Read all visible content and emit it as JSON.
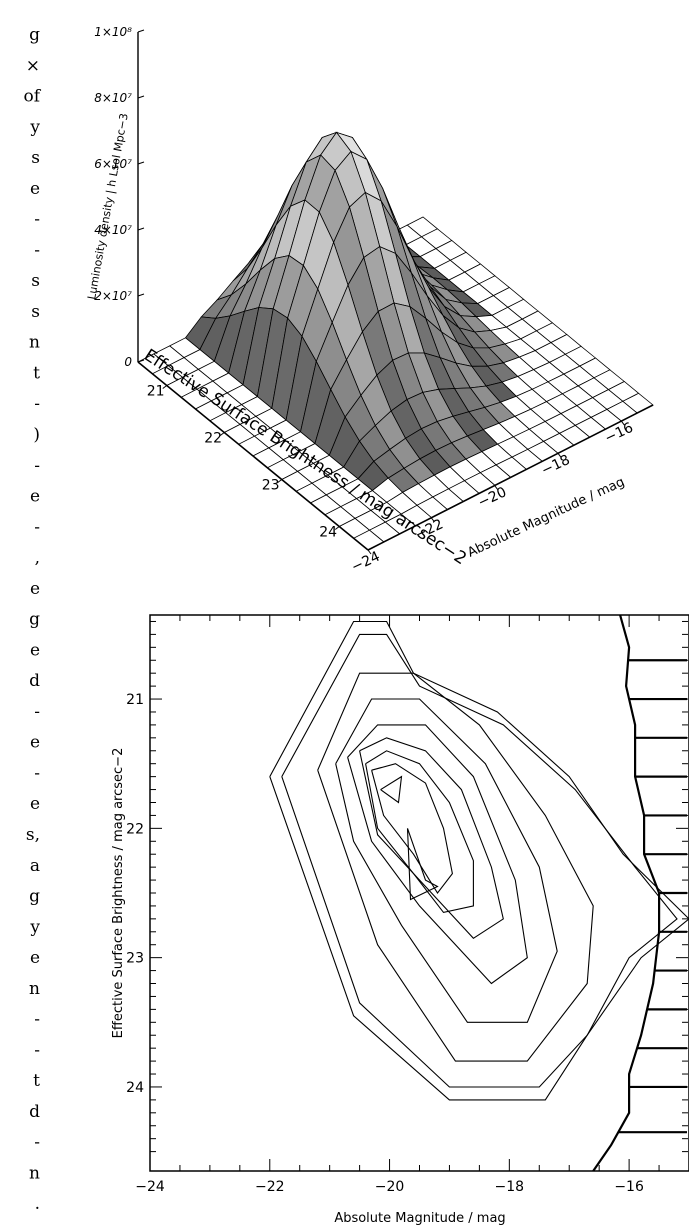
{
  "left_margin_text": [
    "g",
    "×",
    "of",
    "y",
    "s",
    "e",
    "-",
    "-",
    "s",
    "s",
    "n",
    "t",
    "-",
    ")",
    "-",
    "e",
    "-",
    ",",
    "e",
    "g",
    "e",
    "d",
    "-",
    "e",
    "-",
    "e",
    "s,",
    "a",
    "g",
    "y",
    "e",
    "n",
    "-",
    "-",
    "t",
    "d",
    "-",
    "n",
    "."
  ],
  "chart_data": [
    {
      "type": "surface",
      "xlabel": "Absolute Magnitude / mag",
      "ylabel": "Effective Surface Brightness / mag arcsec−2",
      "zlabel": "Luminosity density | h Lsol Mpc−3",
      "x_ticks": [
        "−24",
        "−22",
        "−20",
        "−18",
        "−16"
      ],
      "y_ticks": [
        "21",
        "22",
        "23",
        "24"
      ],
      "z_ticks": [
        "0",
        "2×10⁷",
        "4×10⁷",
        "6×10⁷",
        "8×10⁷",
        "1×10⁸"
      ],
      "xlim": [
        -24,
        -15
      ],
      "ylim": [
        20.5,
        24.5
      ],
      "zlim": [
        0,
        100000000
      ],
      "peak": {
        "x": -20,
        "y": 21.8,
        "z": 68000000
      }
    },
    {
      "type": "contour",
      "xlabel": "Absolute Magnitude / mag",
      "ylabel": "Effective Surface Brightness / mag arcsec−2",
      "x_ticks": [
        -24,
        -22,
        -20,
        -18,
        -16
      ],
      "y_ticks": [
        21,
        22,
        23,
        24
      ],
      "xlim": [
        -24,
        -15
      ],
      "ylim": [
        20.35,
        24.65
      ],
      "y_inverted": true,
      "contour_levels": 10,
      "contours": [
        [
          [
            -22.0,
            21.6
          ],
          [
            -20.6,
            20.4
          ],
          [
            -20.05,
            20.4
          ],
          [
            -19.6,
            20.8
          ],
          [
            -18.2,
            21.1
          ],
          [
            -17.0,
            21.6
          ],
          [
            -16.1,
            22.2
          ],
          [
            -15.0,
            22.7
          ],
          [
            -15.8,
            23.0
          ],
          [
            -16.7,
            23.6
          ],
          [
            -17.4,
            24.1
          ],
          [
            -19.0,
            24.1
          ],
          [
            -20.6,
            23.45
          ],
          [
            -22.0,
            21.6
          ]
        ],
        [
          [
            -21.8,
            21.6
          ],
          [
            -20.5,
            20.5
          ],
          [
            -20.05,
            20.5
          ],
          [
            -19.5,
            20.9
          ],
          [
            -18.1,
            21.2
          ],
          [
            -16.9,
            21.7
          ],
          [
            -15.9,
            22.3
          ],
          [
            -15.2,
            22.7
          ],
          [
            -16.0,
            23.0
          ],
          [
            -16.7,
            23.6
          ],
          [
            -17.5,
            24.0
          ],
          [
            -19.0,
            24.0
          ],
          [
            -20.5,
            23.35
          ],
          [
            -21.8,
            21.6
          ]
        ],
        [
          [
            -21.2,
            21.55
          ],
          [
            -20.5,
            20.8
          ],
          [
            -19.6,
            20.8
          ],
          [
            -18.5,
            21.2
          ],
          [
            -17.4,
            21.9
          ],
          [
            -16.6,
            22.6
          ],
          [
            -16.7,
            23.2
          ],
          [
            -17.7,
            23.8
          ],
          [
            -18.9,
            23.8
          ],
          [
            -20.2,
            22.9
          ],
          [
            -21.2,
            21.55
          ]
        ],
        [
          [
            -20.9,
            21.5
          ],
          [
            -20.3,
            21.0
          ],
          [
            -19.5,
            21.0
          ],
          [
            -18.4,
            21.5
          ],
          [
            -17.5,
            22.3
          ],
          [
            -17.2,
            22.95
          ],
          [
            -17.7,
            23.5
          ],
          [
            -18.7,
            23.5
          ],
          [
            -19.8,
            22.75
          ],
          [
            -20.6,
            22.1
          ],
          [
            -20.9,
            21.5
          ]
        ],
        [
          [
            -20.7,
            21.45
          ],
          [
            -20.2,
            21.2
          ],
          [
            -19.4,
            21.2
          ],
          [
            -18.6,
            21.6
          ],
          [
            -17.9,
            22.4
          ],
          [
            -17.7,
            23.0
          ],
          [
            -18.3,
            23.2
          ],
          [
            -19.5,
            22.6
          ],
          [
            -20.3,
            22.1
          ],
          [
            -20.7,
            21.45
          ]
        ],
        [
          [
            -20.5,
            21.4
          ],
          [
            -20.05,
            21.3
          ],
          [
            -19.4,
            21.4
          ],
          [
            -18.8,
            21.7
          ],
          [
            -18.3,
            22.3
          ],
          [
            -18.1,
            22.7
          ],
          [
            -18.6,
            22.85
          ],
          [
            -19.4,
            22.45
          ],
          [
            -20.2,
            22.05
          ],
          [
            -20.5,
            21.4
          ]
        ],
        [
          [
            -20.4,
            21.5
          ],
          [
            -20.05,
            21.4
          ],
          [
            -19.5,
            21.5
          ],
          [
            -19.0,
            21.8
          ],
          [
            -18.6,
            22.25
          ],
          [
            -18.6,
            22.6
          ],
          [
            -19.1,
            22.65
          ],
          [
            -19.6,
            22.35
          ],
          [
            -20.2,
            22.0
          ],
          [
            -20.4,
            21.5
          ]
        ],
        [
          [
            -20.3,
            21.55
          ],
          [
            -19.9,
            21.5
          ],
          [
            -19.4,
            21.65
          ],
          [
            -19.1,
            22.0
          ],
          [
            -18.95,
            22.35
          ],
          [
            -19.2,
            22.5
          ],
          [
            -19.6,
            22.2
          ],
          [
            -20.1,
            21.9
          ],
          [
            -20.3,
            21.55
          ]
        ],
        [
          [
            -20.15,
            21.7
          ],
          [
            -19.8,
            21.6
          ],
          [
            -19.85,
            21.8
          ],
          [
            -20.15,
            21.7
          ]
        ],
        [
          [
            -19.7,
            22.0
          ],
          [
            -19.4,
            22.4
          ],
          [
            -19.2,
            22.45
          ],
          [
            -19.65,
            22.55
          ],
          [
            -19.7,
            22.0
          ]
        ]
      ],
      "boundary": [
        [
          -16.15,
          20.35
        ],
        [
          -16.0,
          20.6
        ],
        [
          -16.05,
          20.9
        ],
        [
          -15.9,
          21.2
        ],
        [
          -15.9,
          21.6
        ],
        [
          -15.75,
          21.9
        ],
        [
          -15.75,
          22.2
        ],
        [
          -15.5,
          22.5
        ],
        [
          -15.5,
          22.8
        ],
        [
          -15.6,
          23.2
        ],
        [
          -15.8,
          23.6
        ],
        [
          -16.0,
          23.9
        ],
        [
          -16.0,
          24.2
        ],
        [
          -16.3,
          24.45
        ],
        [
          -16.6,
          24.65
        ]
      ],
      "hatch_y": [
        20.7,
        21.0,
        21.3,
        21.6,
        21.9,
        22.2,
        22.5,
        22.8,
        23.1,
        23.4,
        23.7,
        24.0,
        24.35
      ]
    }
  ]
}
